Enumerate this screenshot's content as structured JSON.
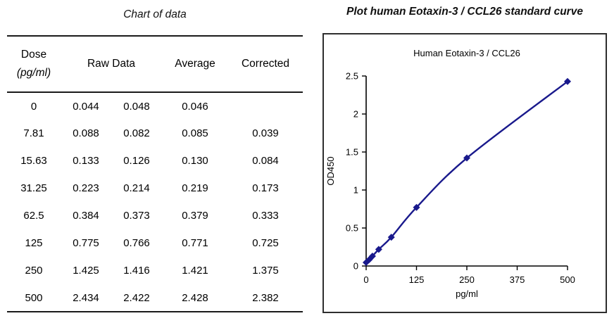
{
  "left_panel": {
    "title": "Chart of data",
    "table": {
      "headers": {
        "dose_line1": "Dose",
        "dose_line2": "(pg/ml)",
        "raw": "Raw Data",
        "average": "Average",
        "corrected": "Corrected"
      },
      "rows": [
        [
          "0",
          "0.044",
          "0.048",
          "0.046",
          ""
        ],
        [
          "7.81",
          "0.088",
          "0.082",
          "0.085",
          "0.039"
        ],
        [
          "15.63",
          "0.133",
          "0.126",
          "0.130",
          "0.084"
        ],
        [
          "31.25",
          "0.223",
          "0.214",
          "0.219",
          "0.173"
        ],
        [
          "62.5",
          "0.384",
          "0.373",
          "0.379",
          "0.333"
        ],
        [
          "125",
          "0.775",
          "0.766",
          "0.771",
          "0.725"
        ],
        [
          "250",
          "1.425",
          "1.416",
          "1.421",
          "1.375"
        ],
        [
          "500",
          "2.434",
          "2.422",
          "2.428",
          "2.382"
        ]
      ]
    }
  },
  "right_panel": {
    "title": "Plot human Eotaxin-3 / CCL26 standard curve"
  },
  "chart_data": {
    "type": "line",
    "title": "Human Eotaxin-3 / CCL26",
    "x": [
      0,
      7.81,
      15.63,
      31.25,
      62.5,
      125,
      250,
      500
    ],
    "y": [
      0.046,
      0.085,
      0.13,
      0.219,
      0.379,
      0.771,
      1.421,
      2.428
    ],
    "xlabel": "pg/ml",
    "ylabel": "OD450",
    "xlim": [
      0,
      500
    ],
    "ylim": [
      0,
      2.5
    ],
    "x_ticks": [
      0,
      125,
      250,
      375,
      500
    ],
    "y_ticks": [
      0,
      0.5,
      1,
      1.5,
      2,
      2.5
    ],
    "line_color": "#19198c",
    "axis_color": "#000000",
    "box_border_color": "#2e2e2e",
    "marker": "diamond",
    "grid": false,
    "legend": "none"
  }
}
